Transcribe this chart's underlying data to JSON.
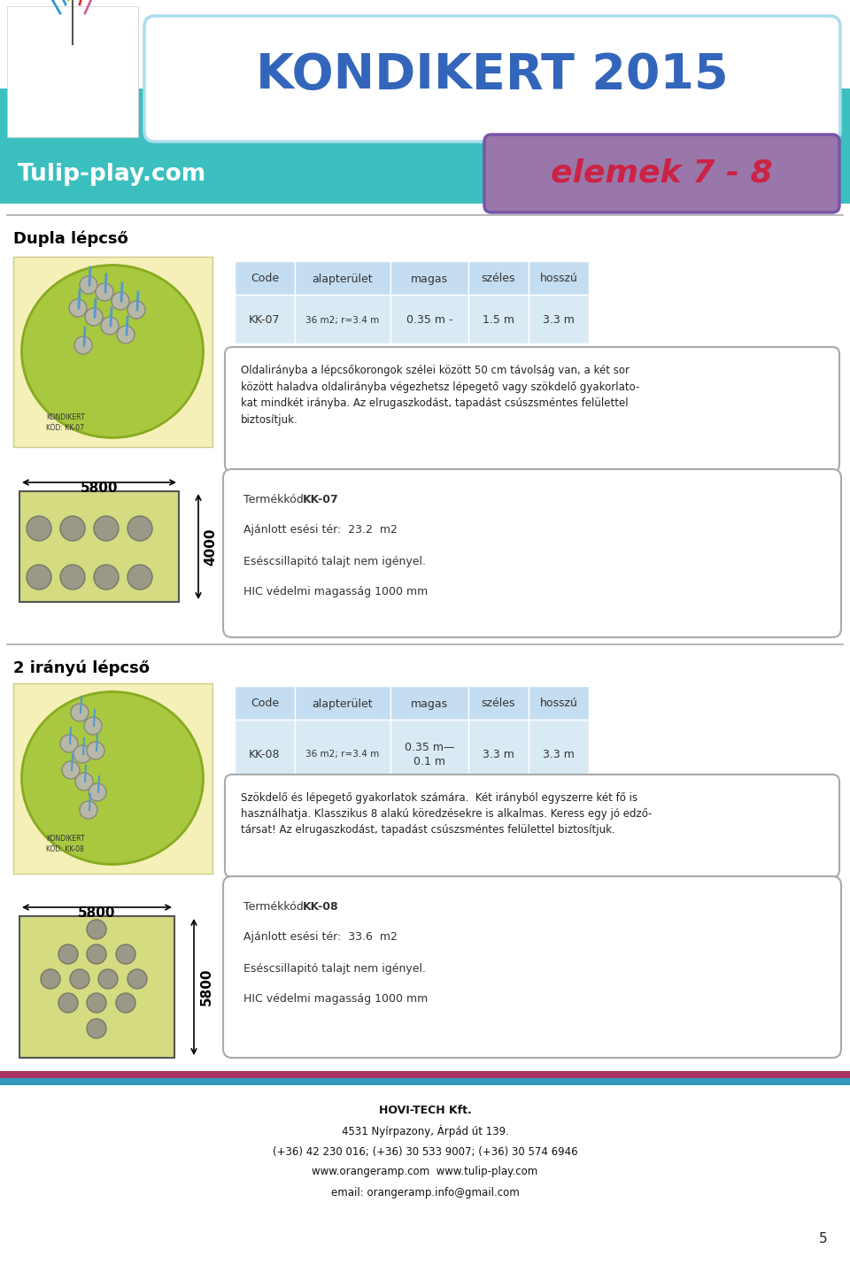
{
  "title": "KONDIKERT 2015",
  "website": "Tulip-play.com",
  "elemek": "elemek 7 - 8",
  "bg_color": "#40BFBF",
  "section1_title": "Dupla lépcső",
  "section2_title": "2 irányú lépcső",
  "table1_headers": [
    "Code",
    "alapterület",
    "magas",
    "széles",
    "hosszú"
  ],
  "table1_row": [
    "KK-07",
    "36 m2; r=3.4 m",
    "0.35 m -",
    "1.5 m",
    "3.3 m"
  ],
  "table2_headers": [
    "Code",
    "alapterület",
    "magas",
    "széles",
    "hosszú"
  ],
  "table2_row": [
    "KK-08",
    "36 m2; r=3.4 m",
    "0.35 m—\n0.1 m",
    "3.3 m",
    "3.3 m"
  ],
  "desc1": "Oldalirányba a lépcsőkorongok szélei között 50 cm távolság van, a két sor\nközött haladva oldalirányba végezhetsz lépegető vagy szökdelő gyakorlato-\nkat mindkét irányba. Az elrugaszkodást, tapadást csúszsméntes felülettel\nbiztosítjuk.",
  "info1_line1_a": "Termékkód: ",
  "info1_line1_b": "KK-07",
  "info1_line2": "Ajánlott esési tér:  23.2  m2",
  "info1_line3": "Eséscsillapitó talajt nem igényel.",
  "info1_line4": "HIC védelmi magasság 1000 mm",
  "desc2": "Szökdelő és lépegető gyakorlatok számára.  Két irányból egyszerre két fő is\nhasználhatja. Klasszikus 8 alakú köredzésekre is alkalmas. Keress egy jó edző-\ntársat! Az elrugaszkodást, tapadást csúszsméntes felülettel biztosítjuk.",
  "info2_line1_a": "Termékkód: ",
  "info2_line1_b": "KK-08",
  "info2_line2": "Ajánlott esési tér:  33.6  m2",
  "info2_line3": "Eséscsillapitó talajt nem igényel.",
  "info2_line4": "HIC védelmi magasság 1000 mm",
  "dim1_w": "5800",
  "dim1_h": "4000",
  "dim2_w": "5800",
  "dim2_h": "5800",
  "footer_company": "HOVI-TECH Kft.",
  "footer_address": "4531 Nyírpazony, Árpád út 139.",
  "footer_phone": "(+36) 42 230 016; (+36) 30 533 9007; (+36) 30 574 6946",
  "footer_web": "www.orangeramp.com  www.tulip-play.com",
  "footer_email": "email: orangeramp.info@gmail.com",
  "footer_page": "5"
}
